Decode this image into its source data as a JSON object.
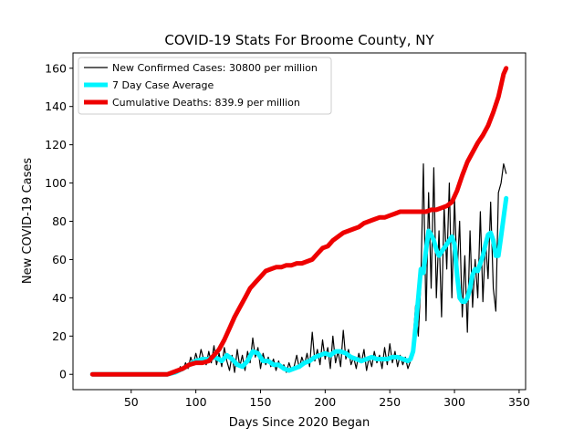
{
  "chart_data": {
    "type": "line",
    "title": "COVID-19 Stats For Broome County, NY",
    "xlabel": "Days Since 2020 Began",
    "ylabel": "New COVID-19 Cases",
    "xlim": [
      5,
      355
    ],
    "ylim": [
      -8,
      168
    ],
    "xticks": [
      50,
      100,
      150,
      200,
      250,
      300,
      350
    ],
    "yticks": [
      0,
      20,
      40,
      60,
      80,
      100,
      120,
      140,
      160
    ],
    "grid": false,
    "legend_position": "top-left",
    "series": [
      {
        "name": "New Confirmed Cases: 30800 per million",
        "color": "#000000",
        "points": [
          [
            20,
            0
          ],
          [
            40,
            0
          ],
          [
            60,
            0
          ],
          [
            78,
            0
          ],
          [
            80,
            1
          ],
          [
            82,
            0
          ],
          [
            84,
            2
          ],
          [
            86,
            1
          ],
          [
            88,
            4
          ],
          [
            90,
            2
          ],
          [
            92,
            6
          ],
          [
            94,
            3
          ],
          [
            96,
            9
          ],
          [
            98,
            5
          ],
          [
            100,
            11
          ],
          [
            102,
            6
          ],
          [
            104,
            13
          ],
          [
            106,
            8
          ],
          [
            108,
            5
          ],
          [
            110,
            12
          ],
          [
            112,
            6
          ],
          [
            114,
            15
          ],
          [
            116,
            5
          ],
          [
            118,
            11
          ],
          [
            120,
            4
          ],
          [
            122,
            14
          ],
          [
            124,
            7
          ],
          [
            126,
            2
          ],
          [
            128,
            10
          ],
          [
            130,
            1
          ],
          [
            132,
            13
          ],
          [
            134,
            4
          ],
          [
            136,
            10
          ],
          [
            138,
            2
          ],
          [
            140,
            12
          ],
          [
            142,
            6
          ],
          [
            144,
            19
          ],
          [
            146,
            9
          ],
          [
            148,
            14
          ],
          [
            150,
            3
          ],
          [
            152,
            11
          ],
          [
            154,
            5
          ],
          [
            156,
            9
          ],
          [
            158,
            4
          ],
          [
            160,
            8
          ],
          [
            162,
            2
          ],
          [
            164,
            7
          ],
          [
            166,
            3
          ],
          [
            168,
            5
          ],
          [
            170,
            1
          ],
          [
            172,
            6
          ],
          [
            174,
            2
          ],
          [
            176,
            4
          ],
          [
            178,
            10
          ],
          [
            180,
            3
          ],
          [
            182,
            9
          ],
          [
            184,
            5
          ],
          [
            186,
            11
          ],
          [
            188,
            4
          ],
          [
            190,
            22
          ],
          [
            192,
            7
          ],
          [
            194,
            13
          ],
          [
            196,
            5
          ],
          [
            198,
            18
          ],
          [
            200,
            8
          ],
          [
            202,
            14
          ],
          [
            204,
            3
          ],
          [
            206,
            20
          ],
          [
            208,
            6
          ],
          [
            210,
            12
          ],
          [
            212,
            4
          ],
          [
            214,
            23
          ],
          [
            216,
            8
          ],
          [
            218,
            13
          ],
          [
            220,
            5
          ],
          [
            222,
            9
          ],
          [
            224,
            3
          ],
          [
            226,
            11
          ],
          [
            228,
            6
          ],
          [
            230,
            13
          ],
          [
            232,
            2
          ],
          [
            234,
            9
          ],
          [
            236,
            4
          ],
          [
            238,
            12
          ],
          [
            240,
            6
          ],
          [
            242,
            10
          ],
          [
            244,
            3
          ],
          [
            246,
            14
          ],
          [
            248,
            5
          ],
          [
            250,
            16
          ],
          [
            252,
            6
          ],
          [
            254,
            12
          ],
          [
            256,
            4
          ],
          [
            258,
            10
          ],
          [
            260,
            5
          ],
          [
            262,
            9
          ],
          [
            264,
            3
          ],
          [
            266,
            7
          ],
          [
            268,
            18
          ],
          [
            270,
            36
          ],
          [
            272,
            20
          ],
          [
            274,
            48
          ],
          [
            276,
            110
          ],
          [
            278,
            28
          ],
          [
            280,
            95
          ],
          [
            282,
            45
          ],
          [
            284,
            108
          ],
          [
            286,
            40
          ],
          [
            288,
            75
          ],
          [
            290,
            30
          ],
          [
            292,
            88
          ],
          [
            294,
            55
          ],
          [
            296,
            100
          ],
          [
            298,
            40
          ],
          [
            300,
            92
          ],
          [
            302,
            52
          ],
          [
            304,
            80
          ],
          [
            306,
            30
          ],
          [
            308,
            62
          ],
          [
            310,
            22
          ],
          [
            312,
            75
          ],
          [
            314,
            35
          ],
          [
            316,
            60
          ],
          [
            318,
            40
          ],
          [
            320,
            85
          ],
          [
            322,
            38
          ],
          [
            324,
            70
          ],
          [
            326,
            50
          ],
          [
            328,
            90
          ],
          [
            330,
            45
          ],
          [
            332,
            33
          ],
          [
            334,
            95
          ],
          [
            336,
            100
          ],
          [
            338,
            110
          ],
          [
            340,
            105
          ]
        ]
      },
      {
        "name": "7 Day Case Average",
        "color": "#00f5ff",
        "points": [
          [
            20,
            0
          ],
          [
            40,
            0
          ],
          [
            60,
            0
          ],
          [
            78,
            0
          ],
          [
            84,
            1
          ],
          [
            90,
            3
          ],
          [
            95,
            5
          ],
          [
            100,
            7
          ],
          [
            105,
            8
          ],
          [
            110,
            8
          ],
          [
            115,
            9
          ],
          [
            120,
            7
          ],
          [
            124,
            10
          ],
          [
            128,
            8
          ],
          [
            132,
            5
          ],
          [
            136,
            4
          ],
          [
            140,
            7
          ],
          [
            144,
            12
          ],
          [
            148,
            11
          ],
          [
            152,
            7
          ],
          [
            156,
            7
          ],
          [
            160,
            5
          ],
          [
            164,
            5
          ],
          [
            168,
            3
          ],
          [
            172,
            2
          ],
          [
            176,
            3
          ],
          [
            180,
            4
          ],
          [
            184,
            6
          ],
          [
            188,
            7
          ],
          [
            192,
            9
          ],
          [
            196,
            10
          ],
          [
            200,
            11
          ],
          [
            204,
            10
          ],
          [
            208,
            12
          ],
          [
            212,
            12
          ],
          [
            216,
            11
          ],
          [
            220,
            9
          ],
          [
            224,
            8
          ],
          [
            228,
            7
          ],
          [
            232,
            8
          ],
          [
            236,
            9
          ],
          [
            240,
            8
          ],
          [
            244,
            8
          ],
          [
            248,
            8
          ],
          [
            252,
            9
          ],
          [
            256,
            9
          ],
          [
            260,
            8
          ],
          [
            264,
            7
          ],
          [
            266,
            8
          ],
          [
            268,
            12
          ],
          [
            270,
            25
          ],
          [
            272,
            40
          ],
          [
            274,
            55
          ],
          [
            276,
            53
          ],
          [
            278,
            65
          ],
          [
            280,
            75
          ],
          [
            282,
            73
          ],
          [
            284,
            70
          ],
          [
            286,
            65
          ],
          [
            288,
            62
          ],
          [
            290,
            64
          ],
          [
            292,
            66
          ],
          [
            294,
            68
          ],
          [
            296,
            70
          ],
          [
            298,
            72
          ],
          [
            300,
            68
          ],
          [
            302,
            52
          ],
          [
            304,
            40
          ],
          [
            306,
            38
          ],
          [
            308,
            38
          ],
          [
            310,
            40
          ],
          [
            312,
            45
          ],
          [
            314,
            52
          ],
          [
            316,
            55
          ],
          [
            318,
            54
          ],
          [
            320,
            58
          ],
          [
            322,
            62
          ],
          [
            324,
            68
          ],
          [
            326,
            73
          ],
          [
            328,
            74
          ],
          [
            330,
            70
          ],
          [
            332,
            62
          ],
          [
            334,
            62
          ],
          [
            336,
            72
          ],
          [
            338,
            82
          ],
          [
            340,
            92
          ]
        ]
      },
      {
        "name": "Cumulative Deaths: 839.9 per million",
        "color": "#ee0000",
        "points": [
          [
            20,
            0
          ],
          [
            40,
            0
          ],
          [
            60,
            0
          ],
          [
            78,
            0
          ],
          [
            82,
            1
          ],
          [
            86,
            2
          ],
          [
            90,
            3
          ],
          [
            95,
            5
          ],
          [
            100,
            6
          ],
          [
            105,
            6
          ],
          [
            110,
            7
          ],
          [
            114,
            10
          ],
          [
            118,
            13
          ],
          [
            122,
            18
          ],
          [
            126,
            24
          ],
          [
            130,
            30
          ],
          [
            134,
            35
          ],
          [
            138,
            40
          ],
          [
            142,
            45
          ],
          [
            146,
            48
          ],
          [
            150,
            51
          ],
          [
            154,
            54
          ],
          [
            158,
            55
          ],
          [
            162,
            56
          ],
          [
            166,
            56
          ],
          [
            170,
            57
          ],
          [
            174,
            57
          ],
          [
            178,
            58
          ],
          [
            182,
            58
          ],
          [
            186,
            59
          ],
          [
            190,
            60
          ],
          [
            194,
            63
          ],
          [
            198,
            66
          ],
          [
            202,
            67
          ],
          [
            206,
            70
          ],
          [
            210,
            72
          ],
          [
            214,
            74
          ],
          [
            218,
            75
          ],
          [
            222,
            76
          ],
          [
            226,
            77
          ],
          [
            230,
            79
          ],
          [
            234,
            80
          ],
          [
            238,
            81
          ],
          [
            242,
            82
          ],
          [
            246,
            82
          ],
          [
            250,
            83
          ],
          [
            254,
            84
          ],
          [
            258,
            85
          ],
          [
            262,
            85
          ],
          [
            266,
            85
          ],
          [
            270,
            85
          ],
          [
            274,
            85
          ],
          [
            278,
            85
          ],
          [
            282,
            86
          ],
          [
            286,
            86
          ],
          [
            290,
            87
          ],
          [
            294,
            88
          ],
          [
            298,
            90
          ],
          [
            302,
            96
          ],
          [
            306,
            104
          ],
          [
            310,
            111
          ],
          [
            314,
            116
          ],
          [
            318,
            121
          ],
          [
            322,
            125
          ],
          [
            326,
            130
          ],
          [
            330,
            137
          ],
          [
            334,
            145
          ],
          [
            336,
            151
          ],
          [
            338,
            157
          ],
          [
            340,
            160
          ]
        ]
      }
    ]
  }
}
